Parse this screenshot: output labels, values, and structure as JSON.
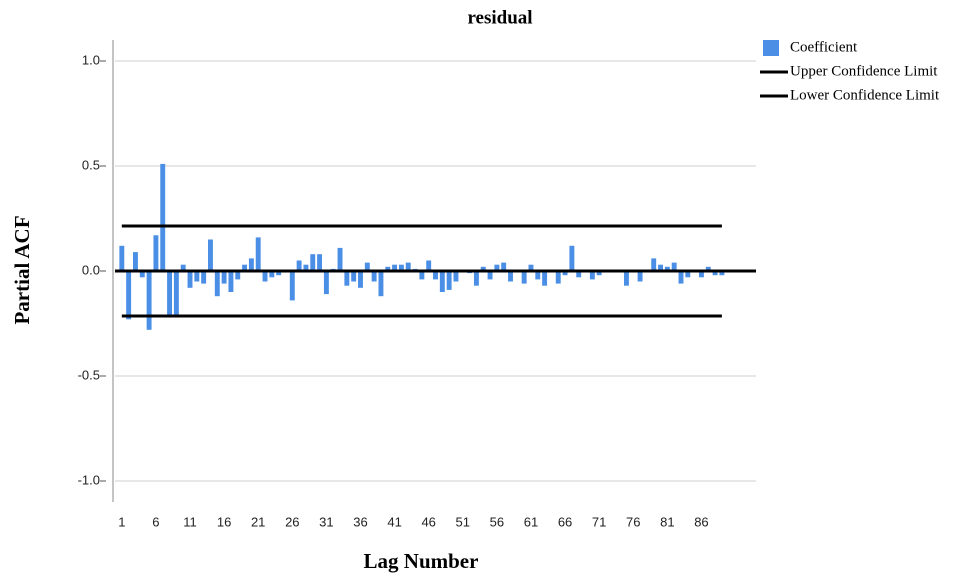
{
  "chart_data": {
    "type": "bar",
    "title": "residual",
    "x_label": "Lag Number",
    "y_label": "Partial ACF",
    "x": [
      1,
      2,
      3,
      4,
      5,
      6,
      7,
      8,
      9,
      10,
      11,
      12,
      13,
      14,
      15,
      16,
      17,
      18,
      19,
      20,
      21,
      22,
      23,
      24,
      25,
      26,
      27,
      28,
      29,
      30,
      31,
      32,
      33,
      34,
      35,
      36,
      37,
      38,
      39,
      40,
      41,
      42,
      43,
      44,
      45,
      46,
      47,
      48,
      49,
      50,
      51,
      52,
      53,
      54,
      55,
      56,
      57,
      58,
      59,
      60,
      61,
      62,
      63,
      64,
      65,
      66,
      67,
      68,
      69,
      70,
      71,
      72,
      73,
      74,
      75,
      76,
      77,
      78,
      79,
      80,
      81,
      82,
      83,
      84,
      85,
      86,
      87,
      88,
      89
    ],
    "series": [
      {
        "name": "Coefficient",
        "color": "#4a8ee6",
        "values": [
          0.12,
          -0.23,
          0.09,
          -0.03,
          -0.28,
          0.17,
          0.51,
          -0.22,
          -0.21,
          0.03,
          -0.08,
          -0.05,
          -0.06,
          0.15,
          -0.12,
          -0.06,
          -0.1,
          -0.04,
          0.03,
          0.06,
          0.16,
          -0.05,
          -0.03,
          -0.02,
          0.0,
          -0.14,
          0.05,
          0.03,
          0.08,
          0.08,
          -0.11,
          0.01,
          0.11,
          -0.07,
          -0.05,
          -0.08,
          0.04,
          -0.05,
          -0.12,
          0.02,
          0.03,
          0.03,
          0.04,
          0.01,
          -0.04,
          0.05,
          -0.04,
          -0.1,
          -0.09,
          -0.05,
          0.0,
          -0.01,
          -0.07,
          0.02,
          -0.04,
          0.03,
          0.04,
          -0.05,
          0.0,
          -0.06,
          0.03,
          -0.04,
          -0.07,
          0.0,
          -0.06,
          -0.02,
          0.12,
          -0.03,
          0.0,
          -0.04,
          -0.02,
          0.0,
          0.0,
          0.0,
          -0.07,
          0.0,
          -0.05,
          0.0,
          0.06,
          0.03,
          0.02,
          0.04,
          -0.06,
          -0.03,
          0.0,
          -0.03,
          0.02,
          -0.02,
          -0.02
        ]
      }
    ],
    "limits": [
      {
        "name": "Upper Confidence Limit",
        "color": "#000000",
        "value": 0.214
      },
      {
        "name": "Lower Confidence Limit",
        "color": "#000000",
        "value": -0.214
      }
    ],
    "xlim": [
      0,
      94
    ],
    "xticks": [
      1,
      6,
      11,
      16,
      21,
      26,
      31,
      36,
      41,
      46,
      51,
      56,
      61,
      66,
      71,
      76,
      81,
      86
    ],
    "ylim": [
      -1.1,
      1.1
    ],
    "yticks": [
      {
        "value": -1,
        "label": "-1.0"
      },
      -0.5,
      {
        "value": 0,
        "label": "0.0"
      },
      0.5,
      {
        "value": 1,
        "label": "1.0"
      }
    ],
    "grid": true,
    "legend": "top-right"
  }
}
